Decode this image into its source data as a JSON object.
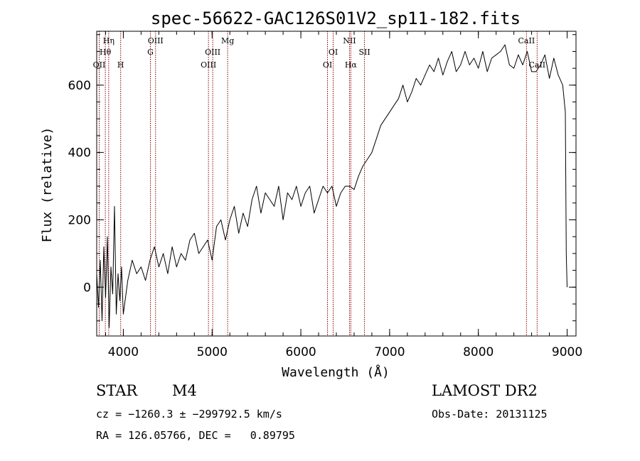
{
  "chart_data": {
    "type": "line",
    "title": "spec-56622-GAC126S01V2_sp11-182.fits",
    "xlabel": "Wavelength (Å)",
    "ylabel": "Flux (relative)",
    "xlim": [
      3700,
      9100
    ],
    "ylim": [
      -145,
      760
    ],
    "x_ticks": [
      4000,
      5000,
      6000,
      7000,
      8000,
      9000
    ],
    "y_ticks": [
      0,
      200,
      400,
      600
    ],
    "x_minor_step": 200,
    "y_minor_step": 50,
    "grid": false,
    "line_color": "#000000",
    "marker_color": "#8b0000",
    "series": [
      {
        "x": [
          3700,
          3720,
          3740,
          3760,
          3780,
          3800,
          3820,
          3840,
          3860,
          3880,
          3900,
          3920,
          3940,
          3960,
          3980,
          4000,
          4050,
          4100,
          4150,
          4200,
          4250,
          4300,
          4350,
          4400,
          4450,
          4500,
          4550,
          4600,
          4650,
          4700,
          4750,
          4800,
          4850,
          4900,
          4950,
          5000,
          5050,
          5100,
          5150,
          5200,
          5250,
          5300,
          5350,
          5400,
          5450,
          5500,
          5550,
          5600,
          5650,
          5700,
          5750,
          5800,
          5850,
          5900,
          5950,
          6000,
          6050,
          6100,
          6150,
          6200,
          6250,
          6300,
          6350,
          6400,
          6450,
          6500,
          6550,
          6600,
          6650,
          6700,
          6750,
          6800,
          6850,
          6900,
          6950,
          7000,
          7050,
          7100,
          7150,
          7200,
          7250,
          7300,
          7350,
          7400,
          7450,
          7500,
          7550,
          7600,
          7650,
          7700,
          7750,
          7800,
          7850,
          7900,
          7950,
          8000,
          8050,
          8100,
          8150,
          8200,
          8250,
          8300,
          8350,
          8400,
          8450,
          8500,
          8550,
          8600,
          8650,
          8700,
          8750,
          8800,
          8850,
          8900,
          8950,
          8980,
          8990,
          9000
        ],
        "y": [
          40,
          -60,
          80,
          -100,
          120,
          -30,
          150,
          -120,
          60,
          -20,
          240,
          -80,
          40,
          -40,
          60,
          -80,
          20,
          80,
          40,
          60,
          20,
          80,
          120,
          60,
          100,
          40,
          120,
          60,
          100,
          80,
          140,
          160,
          100,
          120,
          140,
          80,
          180,
          200,
          140,
          200,
          240,
          160,
          220,
          180,
          260,
          300,
          220,
          280,
          260,
          240,
          300,
          200,
          280,
          260,
          300,
          240,
          280,
          300,
          220,
          260,
          300,
          280,
          300,
          240,
          280,
          300,
          300,
          290,
          330,
          360,
          380,
          400,
          440,
          480,
          500,
          520,
          540,
          560,
          600,
          550,
          580,
          620,
          600,
          630,
          660,
          640,
          680,
          630,
          670,
          700,
          640,
          660,
          700,
          660,
          680,
          650,
          700,
          640,
          680,
          690,
          700,
          720,
          660,
          650,
          690,
          660,
          700,
          640,
          640,
          660,
          690,
          620,
          680,
          630,
          600,
          520,
          100,
          0
        ]
      }
    ],
    "lines": [
      {
        "name": "OII",
        "wavelength": 3728,
        "row": 3
      },
      {
        "name": "Hθ",
        "wavelength": 3797,
        "row": 2
      },
      {
        "name": "Hη",
        "wavelength": 3835,
        "row": 1
      },
      {
        "name": "H",
        "wavelength": 3970,
        "row": 3
      },
      {
        "name": "G",
        "wavelength": 4305,
        "row": 2
      },
      {
        "name": "OIII",
        "wavelength": 4363,
        "row": 1
      },
      {
        "name": "OIII",
        "wavelength": 4959,
        "row": 3
      },
      {
        "name": "OIII",
        "wavelength": 5007,
        "row": 2
      },
      {
        "name": "Mg",
        "wavelength": 5175,
        "row": 1
      },
      {
        "name": "OI",
        "wavelength": 6300,
        "row": 3
      },
      {
        "name": "OI",
        "wavelength": 6364,
        "row": 2
      },
      {
        "name": "NII",
        "wavelength": 6548,
        "row": 1
      },
      {
        "name": "Hα",
        "wavelength": 6563,
        "row": 3
      },
      {
        "name": "SII",
        "wavelength": 6717,
        "row": 2
      },
      {
        "name": "CaII",
        "wavelength": 8542,
        "row": 1
      },
      {
        "name": "CaII",
        "wavelength": 8662,
        "row": 3
      }
    ]
  },
  "info": {
    "object_class": "STAR",
    "subclass": "M4",
    "survey": "LAMOST DR2",
    "cz": "cz = −1260.3 ± −299792.5 km/s",
    "obs_date": "Obs-Date: 20131125",
    "coords": "RA = 126.05766, DEC =   0.89795"
  }
}
